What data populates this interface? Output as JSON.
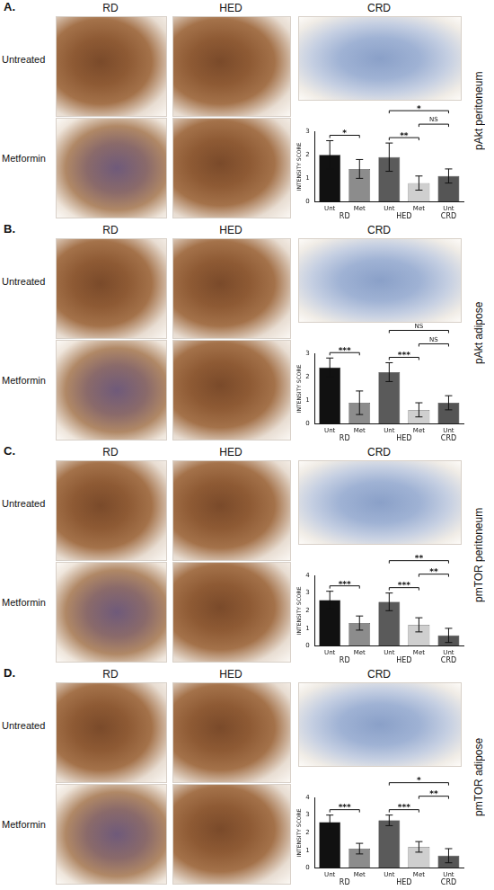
{
  "figure": {
    "panels": [
      {
        "letter": "A.",
        "side_label": "pAkt peritoneum",
        "column_labels": [
          "RD",
          "HED",
          "CRD"
        ],
        "row_labels": [
          "Untreated",
          "Metformin"
        ]
      },
      {
        "letter": "B.",
        "side_label": "pAkt adipose",
        "column_labels": [
          "RD",
          "HED",
          "CRD"
        ],
        "row_labels": [
          "Untreated",
          "Metformin"
        ]
      },
      {
        "letter": "C.",
        "side_label": "pmTOR peritoneum",
        "column_labels": [
          "RD",
          "HED",
          "CRD"
        ],
        "row_labels": [
          "Untreated",
          "Metformin"
        ]
      },
      {
        "letter": "D.",
        "side_label": "pmTOR adipose",
        "column_labels": [
          "RD",
          "HED",
          "CRD"
        ],
        "row_labels": [
          "Untreated",
          "Metformin"
        ]
      }
    ]
  },
  "chart_data": [
    {
      "type": "bar",
      "y_label": "INTENSITY SCORE",
      "categories": [
        "Unt",
        "Met",
        "Unt",
        "Met",
        "Unt"
      ],
      "groups": [
        {
          "label": "RD",
          "from": 0,
          "to": 1
        },
        {
          "label": "HED",
          "from": 2,
          "to": 3
        },
        {
          "label": "CRD",
          "from": 4,
          "to": 4
        }
      ],
      "values": [
        2.0,
        1.4,
        1.9,
        0.8,
        1.1
      ],
      "errors": [
        0.6,
        0.4,
        0.6,
        0.3,
        0.3
      ],
      "colors": [
        "#111111",
        "#8c8c8c",
        "#5a5a5a",
        "#cfcfcf",
        "#555555"
      ],
      "ylim": [
        0,
        3
      ],
      "yticks": [
        0,
        1,
        2,
        3
      ],
      "grid": false,
      "annotations": [
        {
          "from": 0,
          "to": 1,
          "text": "*"
        },
        {
          "from": 2,
          "to": 3,
          "text": "**"
        },
        {
          "from": 3,
          "to": 4,
          "text": "NS"
        },
        {
          "from": 2,
          "to": 4,
          "text": "*"
        }
      ]
    },
    {
      "type": "bar",
      "y_label": "INTENSITY SCORE",
      "categories": [
        "Unt",
        "Met",
        "Unt",
        "Met",
        "Unt"
      ],
      "groups": [
        {
          "label": "RD",
          "from": 0,
          "to": 1
        },
        {
          "label": "HED",
          "from": 2,
          "to": 3
        },
        {
          "label": "CRD",
          "from": 4,
          "to": 4
        }
      ],
      "values": [
        2.4,
        0.9,
        2.2,
        0.6,
        0.9
      ],
      "errors": [
        0.4,
        0.5,
        0.4,
        0.3,
        0.3
      ],
      "colors": [
        "#111111",
        "#8c8c8c",
        "#5a5a5a",
        "#cfcfcf",
        "#555555"
      ],
      "ylim": [
        0,
        3
      ],
      "yticks": [
        0,
        1,
        2,
        3
      ],
      "grid": false,
      "annotations": [
        {
          "from": 0,
          "to": 1,
          "text": "***"
        },
        {
          "from": 2,
          "to": 3,
          "text": "***"
        },
        {
          "from": 3,
          "to": 4,
          "text": "NS"
        },
        {
          "from": 2,
          "to": 4,
          "text": "NS"
        }
      ]
    },
    {
      "type": "bar",
      "y_label": "INTENSITY SCORE",
      "categories": [
        "Unt",
        "Met",
        "Unt",
        "Met",
        "Unt"
      ],
      "groups": [
        {
          "label": "RD",
          "from": 0,
          "to": 1
        },
        {
          "label": "HED",
          "from": 2,
          "to": 3
        },
        {
          "label": "CRD",
          "from": 4,
          "to": 4
        }
      ],
      "values": [
        2.6,
        1.3,
        2.5,
        1.2,
        0.6
      ],
      "errors": [
        0.5,
        0.4,
        0.5,
        0.4,
        0.4
      ],
      "colors": [
        "#111111",
        "#8c8c8c",
        "#5a5a5a",
        "#cfcfcf",
        "#555555"
      ],
      "ylim": [
        0,
        4
      ],
      "yticks": [
        0,
        1,
        2,
        3,
        4
      ],
      "grid": false,
      "annotations": [
        {
          "from": 0,
          "to": 1,
          "text": "***"
        },
        {
          "from": 2,
          "to": 3,
          "text": "***"
        },
        {
          "from": 3,
          "to": 4,
          "text": "**"
        },
        {
          "from": 2,
          "to": 4,
          "text": "**"
        }
      ]
    },
    {
      "type": "bar",
      "y_label": "INTENSITY SCORE",
      "categories": [
        "Unt",
        "Met",
        "Unt",
        "Met",
        "Unt"
      ],
      "groups": [
        {
          "label": "RD",
          "from": 0,
          "to": 1
        },
        {
          "label": "HED",
          "from": 2,
          "to": 3
        },
        {
          "label": "CRD",
          "from": 4,
          "to": 4
        }
      ],
      "values": [
        2.6,
        1.1,
        2.7,
        1.2,
        0.7
      ],
      "errors": [
        0.4,
        0.3,
        0.3,
        0.3,
        0.4
      ],
      "colors": [
        "#111111",
        "#8c8c8c",
        "#5a5a5a",
        "#cfcfcf",
        "#555555"
      ],
      "ylim": [
        0,
        4
      ],
      "yticks": [
        0,
        1,
        2,
        3,
        4
      ],
      "grid": false,
      "annotations": [
        {
          "from": 0,
          "to": 1,
          "text": "***"
        },
        {
          "from": 2,
          "to": 3,
          "text": "***"
        },
        {
          "from": 3,
          "to": 4,
          "text": "**"
        },
        {
          "from": 2,
          "to": 4,
          "text": "*"
        }
      ]
    }
  ]
}
